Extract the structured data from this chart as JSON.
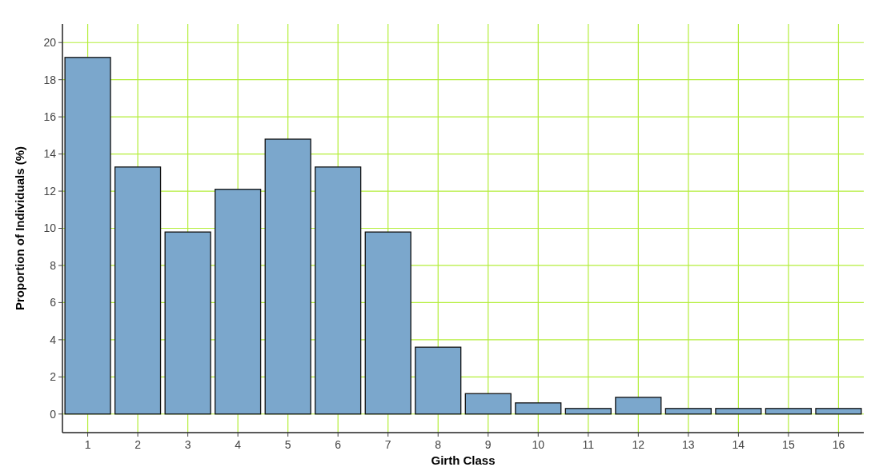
{
  "chart_data": {
    "type": "bar",
    "xlabel": "Girth Class",
    "ylabel": "Proportion of Individuals (%)",
    "categories": [
      "1",
      "2",
      "3",
      "4",
      "5",
      "6",
      "7",
      "8",
      "9",
      "10",
      "11",
      "12",
      "13",
      "14",
      "15",
      "16"
    ],
    "values": [
      19.2,
      13.3,
      9.8,
      12.1,
      14.8,
      13.3,
      9.8,
      3.6,
      1.1,
      0.6,
      0.3,
      0.9,
      0.3,
      0.3,
      0.3,
      0.3
    ],
    "color": "#7ba7cc",
    "ylim": [
      -1,
      21
    ],
    "yticks": [
      0,
      2,
      4,
      6,
      8,
      10,
      12,
      14,
      16,
      18,
      20
    ],
    "grid": true
  }
}
